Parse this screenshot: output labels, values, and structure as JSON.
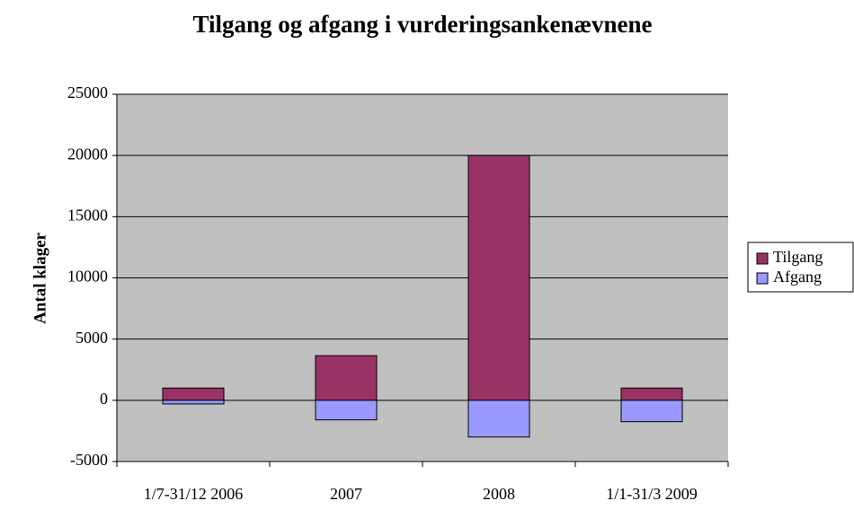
{
  "chart_data": {
    "type": "bar",
    "stacked": true,
    "title": "Tilgang og afgang i vurderingsankenævnene",
    "y_label": "Antal klager",
    "categories": [
      "1/7-31/12 2006",
      "2007",
      "2008",
      "1/1-31/3 2009"
    ],
    "series": [
      {
        "name": "Tilgang",
        "color": "#993366",
        "values": [
          1000,
          3650,
          20000,
          1000
        ]
      },
      {
        "name": "Afgang",
        "color": "#9999ff",
        "values": [
          -300,
          -1600,
          -3000,
          -1750
        ]
      }
    ],
    "ylim": [
      -5000,
      25000
    ],
    "yticks": [
      -5000,
      0,
      5000,
      10000,
      15000,
      20000,
      25000
    ],
    "grid": true,
    "legend": "right"
  }
}
